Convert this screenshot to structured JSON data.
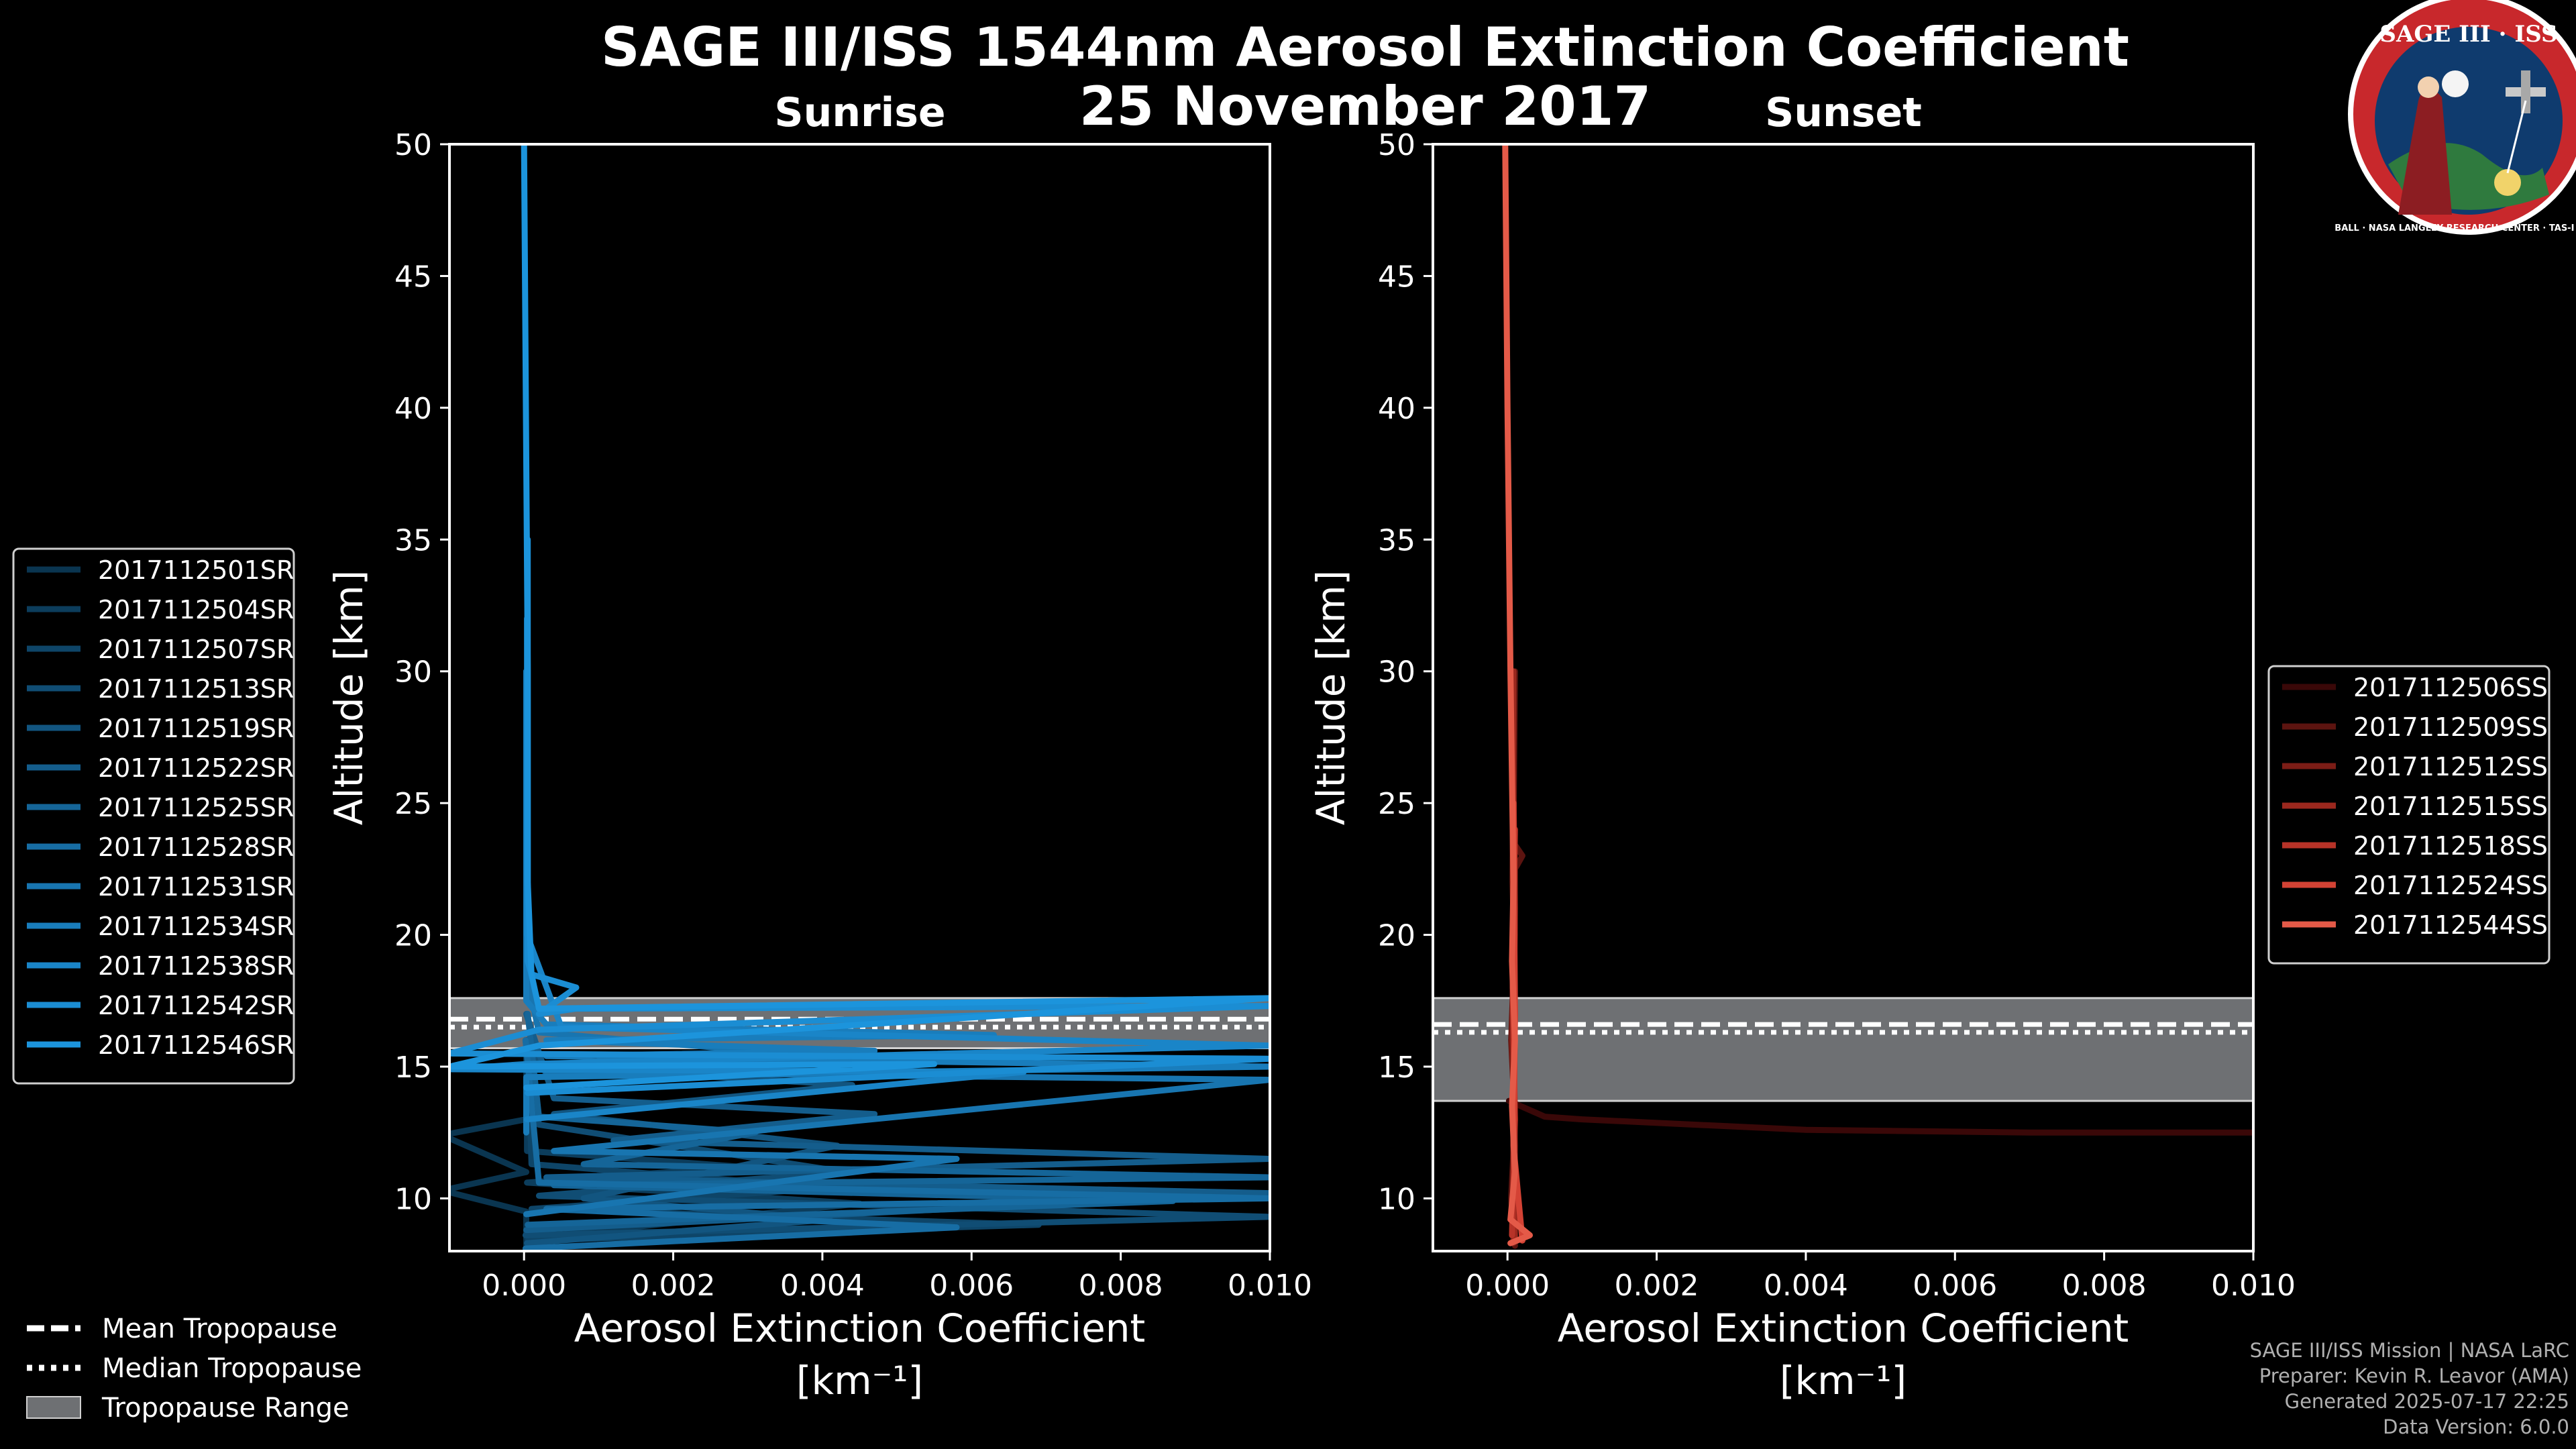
{
  "header": {
    "title_line1": "SAGE III/ISS 1544nm Aerosol Extinction Coefficient",
    "title_line2": "25 November 2017"
  },
  "logo": {
    "text": "SAGE III · ISS",
    "ring_text": "BALL · NASA LANGLEY RESEARCH CENTER · TAS-I · ESA"
  },
  "credits": {
    "line1": "SAGE III/ISS Mission | NASA LaRC",
    "line2": "Preparer: Kevin R. Leavor (AMA)",
    "line3": "Generated 2025-07-17 22:25",
    "line4": "Data Version: 6.0.0"
  },
  "tropopause_legend": [
    {
      "label": "Mean Tropopause",
      "style": "dashed"
    },
    {
      "label": "Median Tropopause",
      "style": "dotted"
    },
    {
      "label": "Tropopause Range",
      "style": "patch"
    }
  ],
  "chart_data": [
    {
      "type": "line",
      "title": "Sunrise",
      "xlabel": "Aerosol Extinction Coefficient",
      "xunit": "[km⁻¹]",
      "ylabel": "Altitude [km]",
      "xlim": [
        -0.001,
        0.01
      ],
      "ylim": [
        8,
        50
      ],
      "xticks": [
        0.0,
        0.002,
        0.004,
        0.006,
        0.008,
        0.01
      ],
      "xtick_labels": [
        "0.000",
        "0.002",
        "0.004",
        "0.006",
        "0.008",
        "0.010"
      ],
      "yticks": [
        10,
        15,
        20,
        25,
        30,
        35,
        40,
        45,
        50
      ],
      "tropopause": {
        "mean": 16.8,
        "median": 16.5,
        "range": [
          15.7,
          17.6
        ]
      },
      "series": [
        {
          "name": "2017112501SR",
          "color": "#0a3550",
          "points": [
            [
              3e-05,
              8.2
            ],
            [
              3e-05,
              9.5
            ],
            [
              -0.0011,
              10.3
            ],
            [
              3e-05,
              11.0
            ],
            [
              -0.0011,
              12.4
            ],
            [
              3e-05,
              13.0
            ],
            [
              3e-05,
              16.0
            ]
          ]
        },
        {
          "name": "2017112504SR",
          "color": "#0c3d5c",
          "points": [
            [
              4e-05,
              8.5
            ],
            [
              0.0045,
              9.8
            ],
            [
              4e-05,
              10.6
            ],
            [
              0.0029,
              11.2
            ],
            [
              4e-05,
              11.8
            ],
            [
              4e-05,
              16.0
            ]
          ]
        },
        {
          "name": "2017112507SR",
          "color": "#0e4568",
          "points": [
            [
              5e-05,
              8.4
            ],
            [
              0.0069,
              9.0
            ],
            [
              0.0001,
              9.6
            ],
            [
              0.0041,
              10.4
            ],
            [
              0.0001,
              11.3
            ],
            [
              5e-05,
              16.0
            ]
          ]
        },
        {
          "name": "2017112513SR",
          "color": "#104d74",
          "points": [
            [
              2e-05,
              8.6
            ],
            [
              0.01,
              9.3
            ],
            [
              0.0002,
              10.1
            ],
            [
              0.0043,
              11.0
            ],
            [
              0.0002,
              12.8
            ],
            [
              2e-05,
              16.0
            ]
          ]
        },
        {
          "name": "2017112519SR",
          "color": "#125580",
          "points": [
            [
              4e-05,
              8.3
            ],
            [
              0.0041,
              9.2
            ],
            [
              0.0008,
              10.0
            ],
            [
              0.0042,
              12.0
            ],
            [
              0.0004,
              13.2
            ],
            [
              0.0044,
              14.3
            ],
            [
              0.0002,
              15.0
            ],
            [
              4e-05,
              17.0
            ]
          ]
        },
        {
          "name": "2017112522SR",
          "color": "#145d8c",
          "points": [
            [
              3e-05,
              8.8
            ],
            [
              0.01,
              10.2
            ],
            [
              0.0003,
              10.8
            ],
            [
              0.01,
              11.5
            ],
            [
              0.0012,
              12.2
            ],
            [
              0.0047,
              13.2
            ],
            [
              0.0004,
              13.8
            ],
            [
              3e-05,
              17.0
            ]
          ]
        },
        {
          "name": "2017112525SR",
          "color": "#156598",
          "points": [
            [
              5e-05,
              9.0
            ],
            [
              0.0087,
              9.9
            ],
            [
              0.0004,
              10.5
            ],
            [
              0.01,
              10.8
            ],
            [
              0.0008,
              11.3
            ],
            [
              0.0031,
              12.5
            ],
            [
              0.0002,
              13.1
            ],
            [
              5e-05,
              17.0
            ]
          ]
        },
        {
          "name": "2017112528SR",
          "color": "#176da4",
          "points": [
            [
              2e-05,
              8.1
            ],
            [
              0.0058,
              8.9
            ],
            [
              0.0003,
              9.6
            ],
            [
              0.01,
              10.0
            ],
            [
              0.0002,
              10.6
            ],
            [
              2e-05,
              16.0
            ]
          ]
        },
        {
          "name": "2017112531SR",
          "color": "#1875b0",
          "points": [
            [
              3e-05,
              9.4
            ],
            [
              0.0058,
              11.5
            ],
            [
              0.0004,
              11.8
            ],
            [
              0.01,
              14.5
            ],
            [
              0.0003,
              14.8
            ],
            [
              0.0043,
              15.3
            ],
            [
              0.0002,
              16.3
            ],
            [
              3e-05,
              18.5
            ],
            [
              3e-05,
              30.0
            ]
          ]
        },
        {
          "name": "2017112534SR",
          "color": "#197dbc",
          "points": [
            [
              3e-05,
              12.5
            ],
            [
              3e-05,
              14.6
            ],
            [
              0.01,
              15.0
            ],
            [
              0.0003,
              15.4
            ],
            [
              0.0047,
              15.6
            ],
            [
              0.0003,
              16.0
            ],
            [
              0.0063,
              16.2
            ],
            [
              0.0003,
              16.6
            ],
            [
              3e-05,
              17.5
            ],
            [
              3e-05,
              30.0
            ]
          ]
        },
        {
          "name": "2017112538SR",
          "color": "#1a85c8",
          "points": [
            [
              4e-05,
              13.0
            ],
            [
              0.0067,
              14.8
            ],
            [
              -0.001,
              14.9
            ],
            [
              4e-05,
              15.1
            ],
            [
              0.01,
              15.8
            ],
            [
              0.0005,
              16.5
            ],
            [
              4e-05,
              20.0
            ],
            [
              4e-05,
              32.0
            ]
          ]
        },
        {
          "name": "2017112542SR",
          "color": "#1b8dd3",
          "points": [
            [
              5e-05,
              14.0
            ],
            [
              0.01,
              15.3
            ],
            [
              -0.001,
              15.5
            ],
            [
              0.0002,
              16.4
            ],
            [
              0.01,
              17.3
            ],
            [
              0.0007,
              17.2
            ],
            [
              0.0002,
              17.0
            ],
            [
              0.0007,
              18.0
            ],
            [
              0.0001,
              18.5
            ],
            [
              5e-05,
              19.0
            ],
            [
              5e-05,
              35.0
            ]
          ]
        },
        {
          "name": "2017112546SR",
          "color": "#1c94dc",
          "points": [
            [
              3e-05,
              14.2
            ],
            [
              0.0055,
              15.1
            ],
            [
              -0.001,
              15.0
            ],
            [
              0.0002,
              15.8
            ],
            [
              0.01,
              17.6
            ],
            [
              0.0002,
              17.2
            ],
            [
              0.0001,
              18.5
            ],
            [
              5e-05,
              22.0
            ],
            [
              5e-05,
              30.0
            ],
            [
              0.0,
              50.0
            ]
          ]
        }
      ]
    },
    {
      "type": "line",
      "title": "Sunset",
      "xlabel": "Aerosol Extinction Coefficient",
      "xunit": "[km⁻¹]",
      "ylabel": "Altitude [km]",
      "xlim": [
        -0.001,
        0.01
      ],
      "ylim": [
        8,
        50
      ],
      "xticks": [
        0.0,
        0.002,
        0.004,
        0.006,
        0.008,
        0.01
      ],
      "xtick_labels": [
        "0.000",
        "0.002",
        "0.004",
        "0.006",
        "0.008",
        "0.010"
      ],
      "yticks": [
        10,
        15,
        20,
        25,
        30,
        35,
        40,
        45,
        50
      ],
      "tropopause": {
        "mean": 16.6,
        "median": 16.3,
        "range": [
          13.7,
          17.6
        ]
      },
      "series": [
        {
          "name": "2017112506SS",
          "color": "#3a0808",
          "points": [
            [
              2e-05,
              13.7
            ],
            [
              0.0005,
              13.1
            ],
            [
              0.001,
              13.0
            ],
            [
              0.004,
              12.6
            ],
            [
              0.007,
              12.5
            ],
            [
              0.01,
              12.5
            ]
          ]
        },
        {
          "name": "2017112509SS",
          "color": "#5c1410",
          "points": [
            [
              0.0001,
              8.2
            ],
            [
              5e-05,
              10.0
            ],
            [
              0.0001,
              13.0
            ],
            [
              5e-05,
              16.0
            ],
            [
              0.0001,
              20.0
            ],
            [
              0.0001,
              22.5
            ],
            [
              0.0002,
              23.0
            ],
            [
              8e-05,
              23.5
            ],
            [
              0.0001,
              30.0
            ]
          ]
        },
        {
          "name": "2017112512SS",
          "color": "#7c1d16",
          "points": [
            [
              8e-05,
              8.3
            ],
            [
              0.0001,
              12.0
            ],
            [
              6e-05,
              16.0
            ],
            [
              0.0001,
              21.0
            ],
            [
              7e-05,
              28.0
            ]
          ]
        },
        {
          "name": "2017112515SS",
          "color": "#9b281e",
          "points": [
            [
              0.0001,
              8.5
            ],
            [
              8e-05,
              12.0
            ],
            [
              0.0001,
              17.0
            ],
            [
              7e-05,
              22.0
            ],
            [
              8e-05,
              30.0
            ]
          ]
        },
        {
          "name": "2017112518SS",
          "color": "#b73328",
          "points": [
            [
              6e-05,
              8.6
            ],
            [
              0.0001,
              13.0
            ],
            [
              7e-05,
              18.0
            ],
            [
              0.0001,
              24.0
            ]
          ]
        },
        {
          "name": "2017112524SS",
          "color": "#d34234",
          "points": [
            [
              0.0002,
              8.4
            ],
            [
              8e-05,
              12.0
            ],
            [
              0.0001,
              17.0
            ],
            [
              8e-05,
              25.0
            ]
          ]
        },
        {
          "name": "2017112544SS",
          "color": "#e45a48",
          "points": [
            [
              4e-05,
              8.3
            ],
            [
              0.0003,
              8.6
            ],
            [
              4e-05,
              9.2
            ],
            [
              0.0001,
              11.0
            ],
            [
              6e-05,
              13.5
            ],
            [
              0.0001,
              16.0
            ],
            [
              6e-05,
              19.0
            ],
            [
              8e-05,
              22.0
            ],
            [
              4e-05,
              30.0
            ],
            [
              0.0,
              40.0
            ],
            [
              -3e-05,
              50.0
            ]
          ]
        }
      ]
    }
  ]
}
